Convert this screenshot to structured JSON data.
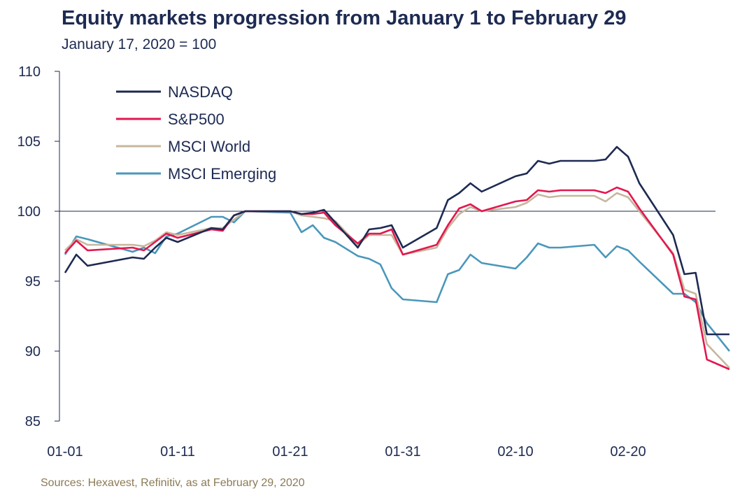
{
  "chart_data": {
    "type": "line",
    "title": "Equity markets progression from January 1 to February 29",
    "subtitle": "January 17, 2020 = 100",
    "source": "Sources: Hexavest, Refinitiv, as at February 29, 2020",
    "ylim": [
      85,
      110
    ],
    "y_ticks": [
      "85",
      "90",
      "95",
      "100",
      "105",
      "110"
    ],
    "x_ticks": [
      "01-01",
      "01-11",
      "01-21",
      "01-31",
      "02-10",
      "02-20"
    ],
    "x_ticks_day": [
      1,
      11,
      21,
      31,
      41,
      51
    ],
    "reference_line": 100,
    "grid": false,
    "legend": "top-left",
    "series": [
      {
        "name": "NASDAQ",
        "color": "#1d2a52",
        "x": [
          1,
          2,
          3,
          7,
          8,
          9,
          10,
          11,
          14,
          15,
          16,
          17,
          21,
          22,
          23,
          24,
          27,
          28,
          29,
          30,
          31,
          34,
          35,
          36,
          37,
          38,
          41,
          42,
          43,
          44,
          45,
          48,
          49,
          50,
          51,
          52,
          55,
          56,
          57,
          58,
          59,
          60
        ],
        "y": [
          95.6,
          96.9,
          96.1,
          96.7,
          96.6,
          97.4,
          98.1,
          97.8,
          98.8,
          98.7,
          99.7,
          100.0,
          100.0,
          99.8,
          99.9,
          100.1,
          97.4,
          98.7,
          98.8,
          99.0,
          97.4,
          98.8,
          100.8,
          101.3,
          102.0,
          101.4,
          102.5,
          102.7,
          103.6,
          103.4,
          103.6,
          103.6,
          103.7,
          104.6,
          103.9,
          102.0,
          98.3,
          95.5,
          95.6,
          91.2,
          91.2,
          91.2
        ]
      },
      {
        "name": "S&P500",
        "color": "#e3174f",
        "x": [
          1,
          2,
          3,
          7,
          8,
          9,
          10,
          11,
          14,
          15,
          16,
          17,
          21,
          22,
          23,
          24,
          25,
          27,
          28,
          29,
          30,
          31,
          34,
          35,
          36,
          37,
          38,
          41,
          42,
          43,
          44,
          45,
          48,
          49,
          50,
          51,
          52,
          55,
          56,
          57,
          58,
          60
        ],
        "y": [
          97.0,
          97.9,
          97.2,
          97.4,
          97.2,
          97.8,
          98.4,
          98.1,
          98.7,
          98.6,
          99.7,
          100.0,
          100.0,
          99.8,
          99.8,
          99.9,
          99.0,
          97.7,
          98.4,
          98.4,
          98.7,
          96.9,
          97.6,
          99.0,
          100.2,
          100.5,
          100.0,
          100.7,
          100.8,
          101.5,
          101.4,
          101.5,
          101.5,
          101.3,
          101.7,
          101.4,
          100.2,
          96.9,
          93.9,
          93.7,
          89.4,
          88.7
        ]
      },
      {
        "name": "MSCI World",
        "color": "#c6b79d",
        "x": [
          1,
          2,
          3,
          7,
          8,
          9,
          10,
          11,
          14,
          15,
          16,
          17,
          21,
          22,
          23,
          24,
          25,
          27,
          28,
          29,
          30,
          31,
          34,
          35,
          36,
          37,
          38,
          41,
          42,
          43,
          44,
          45,
          48,
          49,
          50,
          51,
          52,
          55,
          56,
          57,
          58,
          60
        ],
        "y": [
          97.2,
          98.0,
          97.6,
          97.6,
          97.5,
          97.9,
          98.5,
          98.3,
          98.8,
          98.8,
          99.4,
          100.0,
          100.0,
          99.7,
          99.6,
          99.5,
          99.3,
          97.6,
          98.3,
          98.3,
          98.3,
          96.9,
          97.4,
          98.8,
          99.8,
          100.3,
          100.0,
          100.3,
          100.6,
          101.2,
          101.0,
          101.1,
          101.1,
          100.7,
          101.3,
          101.0,
          100.0,
          97.0,
          94.4,
          94.1,
          90.5,
          88.8
        ]
      },
      {
        "name": "MSCI Emerging",
        "color": "#4a97bb",
        "x": [
          1,
          2,
          3,
          7,
          8,
          9,
          10,
          11,
          14,
          15,
          16,
          17,
          21,
          22,
          23,
          24,
          25,
          27,
          28,
          29,
          30,
          31,
          34,
          35,
          36,
          37,
          38,
          41,
          42,
          43,
          44,
          45,
          48,
          49,
          50,
          51,
          52,
          55,
          56,
          57,
          58,
          60
        ],
        "y": [
          96.9,
          98.2,
          98.0,
          97.1,
          97.4,
          97.0,
          98.2,
          98.4,
          99.6,
          99.6,
          99.2,
          100.0,
          99.9,
          98.5,
          99.0,
          98.1,
          97.8,
          96.8,
          96.6,
          96.2,
          94.5,
          93.7,
          93.5,
          95.5,
          95.8,
          96.9,
          96.3,
          95.9,
          96.7,
          97.7,
          97.4,
          97.4,
          97.6,
          96.7,
          97.5,
          97.2,
          96.4,
          94.1,
          94.1,
          93.5,
          92.0,
          90.0
        ]
      }
    ]
  }
}
